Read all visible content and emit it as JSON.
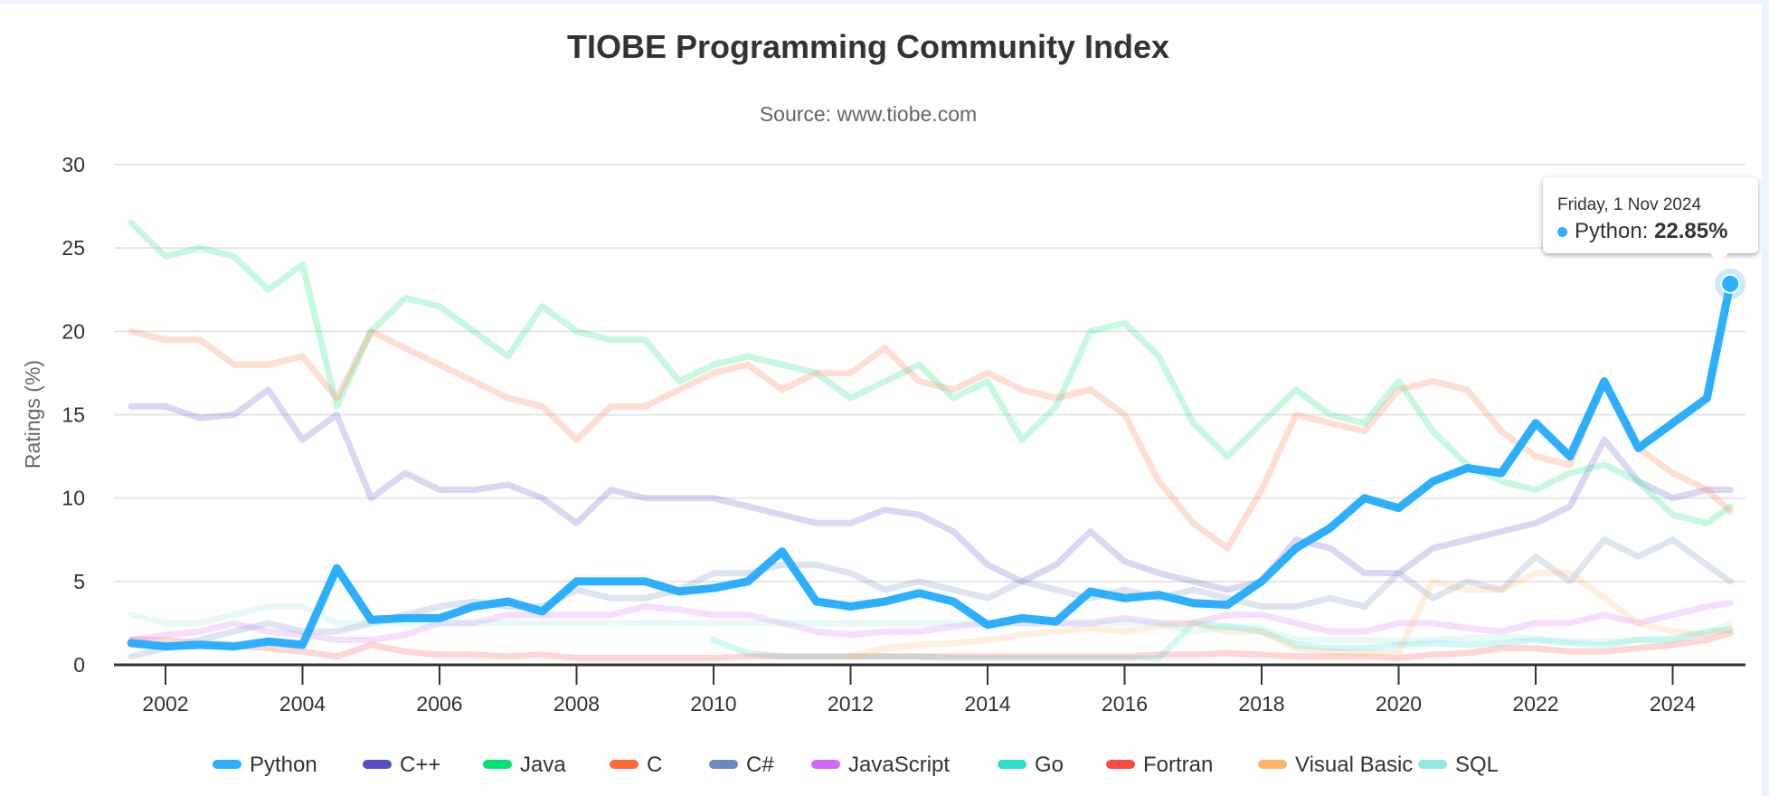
{
  "chart_data": {
    "type": "line",
    "title": "TIOBE Programming Community Index",
    "subtitle": "Source: www.tiobe.com",
    "xlabel": "",
    "ylabel": "Ratings (%)",
    "ylim": [
      0,
      30
    ],
    "xlim": [
      2001.5,
      2024.84
    ],
    "y_ticks": [
      0,
      5,
      10,
      15,
      20,
      25,
      30
    ],
    "x_ticks": [
      2002,
      2004,
      2006,
      2008,
      2010,
      2012,
      2014,
      2016,
      2018,
      2020,
      2022,
      2024
    ],
    "grid": true,
    "legend_position": "bottom",
    "x": [
      2001.5,
      2002,
      2002.5,
      2003,
      2003.5,
      2004,
      2004.5,
      2005,
      2005.5,
      2006,
      2006.5,
      2007,
      2007.5,
      2008,
      2008.5,
      2009,
      2009.5,
      2010,
      2010.5,
      2011,
      2011.5,
      2012,
      2012.5,
      2013,
      2013.5,
      2014,
      2014.5,
      2015,
      2015.5,
      2016,
      2016.5,
      2017,
      2017.5,
      2018,
      2018.5,
      2019,
      2019.5,
      2020,
      2020.5,
      2021,
      2021.5,
      2022,
      2022.5,
      2023,
      2023.5,
      2024,
      2024.5,
      2024.84
    ],
    "series": [
      {
        "name": "Python",
        "color": "#2caffe",
        "highlighted": true,
        "values": [
          1.3,
          1.1,
          1.2,
          1.1,
          1.4,
          1.2,
          5.8,
          2.7,
          2.8,
          2.8,
          3.5,
          3.8,
          3.2,
          5.0,
          5.0,
          5.0,
          4.4,
          4.6,
          5.0,
          6.8,
          3.8,
          3.5,
          3.8,
          4.3,
          3.8,
          2.4,
          2.8,
          2.6,
          4.4,
          4.0,
          4.2,
          3.7,
          3.6,
          5.0,
          7.0,
          8.2,
          10.0,
          9.4,
          11.0,
          11.8,
          11.5,
          14.5,
          12.5,
          17.0,
          13.0,
          14.5,
          16.0,
          22.85
        ]
      },
      {
        "name": "C++",
        "color": "#544fc5",
        "values": [
          15.5,
          15.5,
          14.8,
          15.0,
          16.5,
          13.5,
          15.0,
          10.0,
          11.5,
          10.5,
          10.5,
          10.8,
          10.0,
          8.5,
          10.5,
          10.0,
          10.0,
          10.0,
          9.5,
          9.0,
          8.5,
          8.5,
          9.3,
          9.0,
          8.0,
          6.0,
          5.0,
          6.0,
          8.0,
          6.2,
          5.5,
          5.0,
          4.5,
          5.0,
          7.5,
          7.0,
          5.5,
          5.5,
          7.0,
          7.5,
          8.0,
          8.5,
          9.5,
          13.5,
          11.0,
          10.0,
          10.5,
          10.5
        ]
      },
      {
        "name": "Java",
        "color": "#00e272",
        "values": [
          26.5,
          24.5,
          25.0,
          24.5,
          22.5,
          24.0,
          15.5,
          20.0,
          22.0,
          21.5,
          20.0,
          18.5,
          21.5,
          20.0,
          19.5,
          19.5,
          17.0,
          18.0,
          18.5,
          18.0,
          17.5,
          16.0,
          17.0,
          18.0,
          16.0,
          17.0,
          13.5,
          15.5,
          20.0,
          20.5,
          18.5,
          14.5,
          12.5,
          14.5,
          16.5,
          15.0,
          14.5,
          17.0,
          14.0,
          12.0,
          11.0,
          10.5,
          11.5,
          12.0,
          11.0,
          9.0,
          8.5,
          9.5
        ]
      },
      {
        "name": "C",
        "color": "#fe6a35",
        "values": [
          20.0,
          19.5,
          19.5,
          18.0,
          18.0,
          18.5,
          16.0,
          20.0,
          19.0,
          18.0,
          17.0,
          16.0,
          15.5,
          13.5,
          15.5,
          15.5,
          16.5,
          17.5,
          18.0,
          16.5,
          17.5,
          17.5,
          19.0,
          17.0,
          16.5,
          17.5,
          16.5,
          16.0,
          16.5,
          15.0,
          11.0,
          8.5,
          7.0,
          10.5,
          15.0,
          14.5,
          14.0,
          16.5,
          17.0,
          16.5,
          14.0,
          12.5,
          12.0,
          17.0,
          13.0,
          11.5,
          10.5,
          9.2
        ]
      },
      {
        "name": "C#",
        "color": "#6b8abc",
        "values": [
          0.5,
          1.0,
          1.5,
          2.0,
          2.5,
          2.0,
          2.0,
          2.5,
          3.0,
          3.5,
          3.8,
          3.5,
          3.5,
          4.5,
          4.0,
          4.0,
          4.5,
          5.5,
          5.5,
          6.0,
          6.0,
          5.5,
          4.5,
          5.0,
          4.5,
          4.0,
          5.0,
          4.5,
          4.0,
          4.5,
          4.0,
          4.5,
          4.0,
          3.5,
          3.5,
          4.0,
          3.5,
          5.5,
          4.0,
          5.0,
          4.5,
          6.5,
          5.0,
          7.5,
          6.5,
          7.5,
          6.0,
          5.0
        ]
      },
      {
        "name": "JavaScript",
        "color": "#d568fb",
        "values": [
          1.5,
          1.8,
          2.0,
          2.5,
          2.0,
          1.8,
          1.5,
          1.5,
          1.8,
          2.5,
          2.5,
          3.0,
          3.0,
          3.0,
          3.0,
          3.5,
          3.3,
          3.0,
          3.0,
          2.5,
          2.0,
          1.8,
          2.0,
          2.0,
          2.3,
          2.5,
          2.5,
          2.5,
          2.5,
          2.8,
          2.5,
          2.5,
          3.0,
          3.0,
          2.5,
          2.0,
          2.0,
          2.5,
          2.5,
          2.2,
          2.0,
          2.5,
          2.5,
          3.0,
          2.5,
          3.0,
          3.5,
          3.7
        ]
      },
      {
        "name": "Go",
        "color": "#2ee0ca",
        "values": [
          null,
          null,
          null,
          null,
          null,
          null,
          null,
          null,
          null,
          null,
          null,
          null,
          null,
          null,
          null,
          null,
          null,
          1.5,
          0.7,
          0.5,
          0.5,
          0.5,
          0.5,
          0.5,
          0.4,
          0.4,
          0.4,
          0.4,
          0.4,
          0.4,
          0.4,
          2.5,
          2.3,
          2.0,
          1.2,
          1.0,
          1.0,
          1.2,
          1.3,
          1.2,
          1.3,
          1.5,
          1.3,
          1.2,
          1.5,
          1.5,
          2.0,
          2.1
        ]
      },
      {
        "name": "Fortran",
        "color": "#fa4b42",
        "values": [
          1.5,
          1.5,
          1.3,
          1.2,
          1.0,
          0.8,
          0.5,
          1.2,
          0.8,
          0.6,
          0.6,
          0.5,
          0.6,
          0.4,
          0.4,
          0.4,
          0.4,
          0.4,
          0.5,
          0.5,
          0.5,
          0.5,
          0.5,
          0.5,
          0.5,
          0.5,
          0.5,
          0.5,
          0.5,
          0.5,
          0.6,
          0.6,
          0.7,
          0.6,
          0.5,
          0.5,
          0.5,
          0.4,
          0.6,
          0.7,
          1.0,
          1.0,
          0.8,
          0.8,
          1.0,
          1.2,
          1.5,
          1.9
        ]
      },
      {
        "name": "Visual Basic",
        "color": "#feb56a",
        "values": [
          null,
          null,
          null,
          null,
          null,
          null,
          null,
          null,
          null,
          null,
          null,
          null,
          null,
          null,
          null,
          null,
          null,
          null,
          null,
          null,
          null,
          0.5,
          1.0,
          1.2,
          1.3,
          1.5,
          1.8,
          2.0,
          2.2,
          2.0,
          2.3,
          2.5,
          2.0,
          2.0,
          1.0,
          0.8,
          0.7,
          0.8,
          5.0,
          4.5,
          4.5,
          5.5,
          5.5,
          4.0,
          2.5,
          2.0,
          1.8,
          2.2
        ]
      },
      {
        "name": "SQL",
        "color": "#91e8e1",
        "values": [
          3.0,
          2.5,
          2.5,
          3.0,
          3.5,
          3.5,
          2.5,
          2.5,
          2.5,
          2.5,
          2.5,
          2.5,
          2.5,
          2.5,
          2.5,
          2.5,
          2.5,
          2.5,
          2.5,
          2.5,
          2.5,
          2.5,
          2.5,
          2.5,
          2.5,
          2.5,
          2.5,
          2.5,
          2.5,
          2.5,
          2.5,
          2.0,
          2.3,
          2.2,
          1.5,
          1.5,
          1.5,
          1.4,
          1.5,
          1.6,
          1.7,
          1.6,
          1.4,
          1.4,
          1.5,
          1.6,
          1.9,
          2.5
        ]
      }
    ],
    "tooltip": {
      "date": "Friday, 1 Nov 2024",
      "series": "Python",
      "label": "Python: ",
      "value": "22.85%",
      "x": 2024.84,
      "y": 22.85
    }
  }
}
